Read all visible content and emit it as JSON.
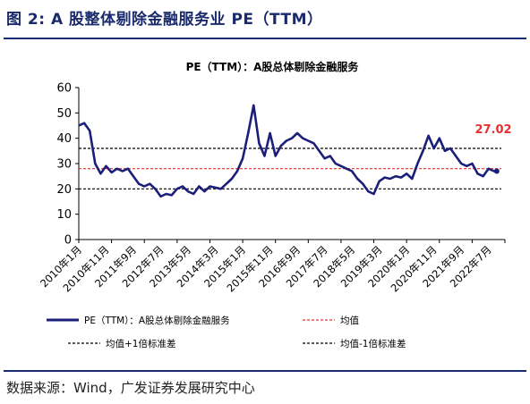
{
  "figure": {
    "title": "图 2:  A 股整体剔除金融服务业 PE（TTM）",
    "source": "数据来源：Wind，广发证券发展研究中心"
  },
  "colors": {
    "series": "#1b1f7a",
    "mean": "#e53030",
    "band": "#000000",
    "title_bar": "#1a2a6c",
    "latest_label": "#e53030"
  },
  "chart_data": {
    "type": "line",
    "title": "PE（TTM）：A股总体剔除金融服务",
    "ylim": [
      0,
      60
    ],
    "yticks": [
      0,
      10,
      20,
      30,
      40,
      50,
      60
    ],
    "xlim": [
      "2010-01",
      "2023-01"
    ],
    "xtick_labels": [
      "2010年1月",
      "2010年11月",
      "2011年9月",
      "2012年7月",
      "2013年5月",
      "2014年3月",
      "2015年1月",
      "2015年11月",
      "2016年9月",
      "2017年7月",
      "2018年5月",
      "2019年3月",
      "2020年1月",
      "2020年11月",
      "2021年9月",
      "2022年7月"
    ],
    "latest_label": "27.02",
    "grid": false,
    "legend_position": "bottom",
    "series": [
      {
        "name": "PE（TTM）：A股总体剔除金融服务",
        "points": [
          [
            "2010-01",
            45
          ],
          [
            "2010-03",
            46
          ],
          [
            "2010-05",
            43
          ],
          [
            "2010-07",
            30
          ],
          [
            "2010-09",
            26
          ],
          [
            "2010-11",
            29
          ],
          [
            "2011-01",
            26.5
          ],
          [
            "2011-03",
            28
          ],
          [
            "2011-05",
            27
          ],
          [
            "2011-07",
            28
          ],
          [
            "2011-09",
            25
          ],
          [
            "2011-11",
            22
          ],
          [
            "2012-01",
            21
          ],
          [
            "2012-03",
            22
          ],
          [
            "2012-05",
            20
          ],
          [
            "2012-07",
            17
          ],
          [
            "2012-09",
            18
          ],
          [
            "2012-11",
            17.5
          ],
          [
            "2013-01",
            20
          ],
          [
            "2013-03",
            21
          ],
          [
            "2013-05",
            19
          ],
          [
            "2013-07",
            18
          ],
          [
            "2013-09",
            21
          ],
          [
            "2013-11",
            19
          ],
          [
            "2014-01",
            21
          ],
          [
            "2014-03",
            20.5
          ],
          [
            "2014-05",
            20
          ],
          [
            "2014-07",
            22
          ],
          [
            "2014-09",
            24
          ],
          [
            "2014-11",
            27
          ],
          [
            "2015-01",
            32
          ],
          [
            "2015-03",
            42
          ],
          [
            "2015-05",
            53
          ],
          [
            "2015-07",
            38
          ],
          [
            "2015-09",
            33
          ],
          [
            "2015-11",
            42
          ],
          [
            "2016-01",
            33
          ],
          [
            "2016-03",
            37
          ],
          [
            "2016-05",
            39
          ],
          [
            "2016-07",
            40
          ],
          [
            "2016-09",
            42
          ],
          [
            "2016-11",
            40
          ],
          [
            "2017-01",
            39
          ],
          [
            "2017-03",
            38
          ],
          [
            "2017-05",
            35
          ],
          [
            "2017-07",
            32
          ],
          [
            "2017-09",
            33
          ],
          [
            "2017-11",
            30
          ],
          [
            "2018-01",
            29
          ],
          [
            "2018-03",
            28
          ],
          [
            "2018-05",
            27
          ],
          [
            "2018-07",
            24
          ],
          [
            "2018-09",
            22
          ],
          [
            "2018-11",
            19
          ],
          [
            "2019-01",
            18
          ],
          [
            "2019-03",
            23
          ],
          [
            "2019-05",
            24.5
          ],
          [
            "2019-07",
            24
          ],
          [
            "2019-09",
            25
          ],
          [
            "2019-11",
            24.5
          ],
          [
            "2020-01",
            26
          ],
          [
            "2020-03",
            24
          ],
          [
            "2020-05",
            30
          ],
          [
            "2020-07",
            35
          ],
          [
            "2020-09",
            41
          ],
          [
            "2020-11",
            36
          ],
          [
            "2021-01",
            40
          ],
          [
            "2021-03",
            35
          ],
          [
            "2021-05",
            36
          ],
          [
            "2021-07",
            33
          ],
          [
            "2021-09",
            30
          ],
          [
            "2021-11",
            29
          ],
          [
            "2022-01",
            30
          ],
          [
            "2022-03",
            26
          ],
          [
            "2022-05",
            25
          ],
          [
            "2022-07",
            28
          ],
          [
            "2022-09",
            27
          ],
          [
            "2022-10",
            27.02
          ]
        ]
      },
      {
        "name": "均值",
        "value": 28
      },
      {
        "name": "均值+1倍标准差",
        "value": 36
      },
      {
        "name": "均值-1倍标准差",
        "value": 20
      }
    ]
  }
}
